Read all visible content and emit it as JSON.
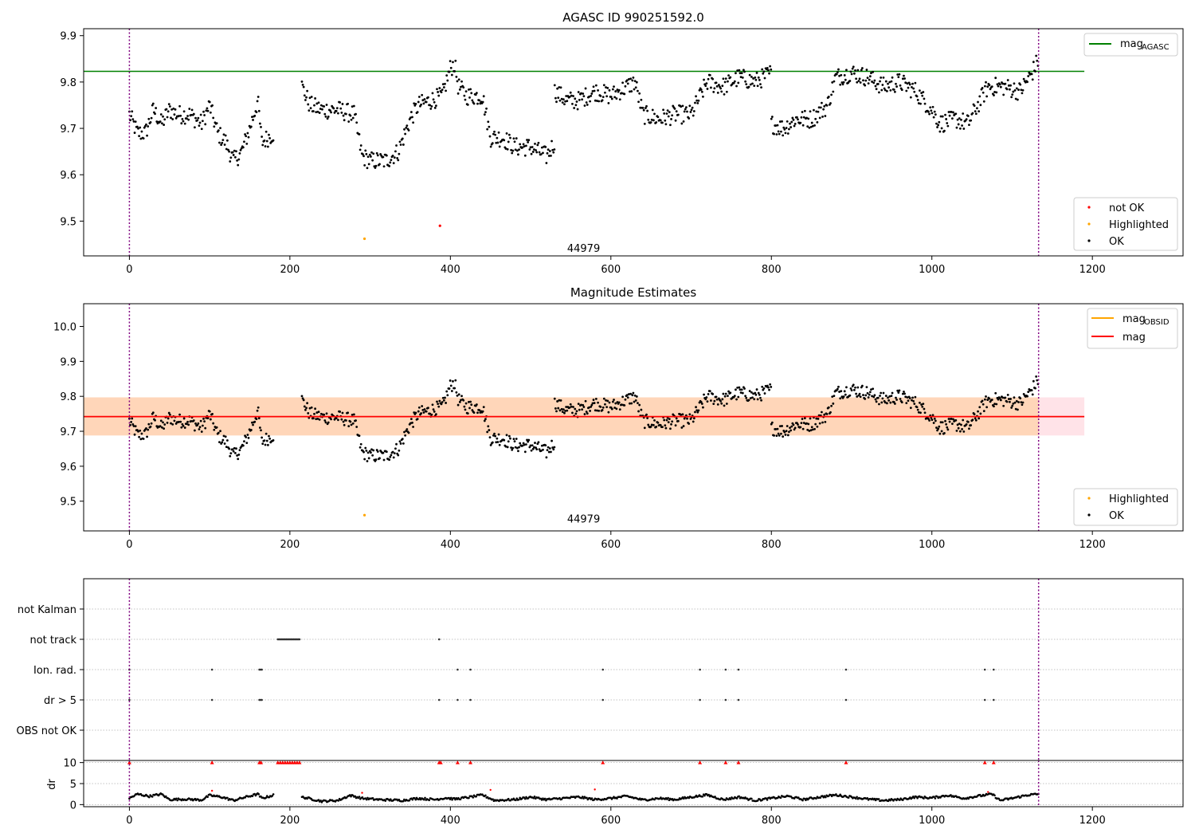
{
  "chart_data": [
    {
      "type": "scatter",
      "title": "AGASC ID 990251592.0",
      "xlim": [
        -57,
        1313
      ],
      "ylim": [
        9.425,
        9.915
      ],
      "xticks": [
        0,
        200,
        400,
        600,
        800,
        1000,
        1200
      ],
      "yticks": [
        9.5,
        9.6,
        9.7,
        9.8,
        9.9
      ],
      "hline": {
        "name": "mag_AGASC",
        "value": 9.823,
        "xrange": [
          -57,
          1190
        ],
        "color": "#008000"
      },
      "vlines": [
        0,
        1133
      ],
      "obsid_label": {
        "text": "44979",
        "x": 566,
        "y": 9.442
      },
      "legend_top": [
        {
          "label": "mag",
          "sub": "AGASC",
          "color": "#008000"
        }
      ],
      "legend_bottom": [
        {
          "label": "not OK",
          "color": "#ff0000"
        },
        {
          "label": "Highlighted",
          "color": "#ffa500"
        },
        {
          "label": "OK",
          "color": "#000000"
        }
      ],
      "series": [
        {
          "name": "OK",
          "color": "#000000",
          "segments": [
            [
              [
                0,
                9.73
              ],
              [
                10,
                9.69
              ],
              [
                20,
                9.69
              ],
              [
                30,
                9.74
              ],
              [
                40,
                9.71
              ],
              [
                50,
                9.74
              ],
              [
                60,
                9.73
              ],
              [
                75,
                9.73
              ],
              [
                90,
                9.71
              ],
              [
                100,
                9.75
              ],
              [
                110,
                9.69
              ],
              [
                120,
                9.67
              ],
              [
                130,
                9.63
              ],
              [
                140,
                9.65
              ],
              [
                150,
                9.7
              ],
              [
                160,
                9.76
              ],
              [
                165,
                9.67
              ],
              [
                180,
                9.69
              ]
            ],
            [
              [
                215,
                9.79
              ],
              [
                225,
                9.75
              ],
              [
                240,
                9.74
              ],
              [
                260,
                9.74
              ],
              [
                280,
                9.73
              ],
              [
                290,
                9.64
              ],
              [
                300,
                9.63
              ],
              [
                320,
                9.63
              ],
              [
                335,
                9.65
              ],
              [
                350,
                9.72
              ],
              [
                360,
                9.75
              ],
              [
                375,
                9.76
              ],
              [
                390,
                9.77
              ],
              [
                400,
                9.83
              ],
              [
                405,
                9.84
              ],
              [
                410,
                9.79
              ],
              [
                420,
                9.77
              ],
              [
                440,
                9.77
              ],
              [
                450,
                9.68
              ],
              [
                465,
                9.68
              ],
              [
                480,
                9.66
              ],
              [
                500,
                9.66
              ],
              [
                520,
                9.64
              ],
              [
                530,
                9.67
              ]
            ],
            [
              [
                530,
                9.78
              ],
              [
                545,
                9.76
              ],
              [
                560,
                9.76
              ],
              [
                580,
                9.78
              ],
              [
                600,
                9.77
              ],
              [
                620,
                9.79
              ],
              [
                630,
                9.8
              ],
              [
                640,
                9.73
              ],
              [
                660,
                9.72
              ],
              [
                680,
                9.73
              ],
              [
                700,
                9.73
              ],
              [
                720,
                9.8
              ],
              [
                740,
                9.79
              ],
              [
                760,
                9.81
              ],
              [
                780,
                9.8
              ],
              [
                790,
                9.81
              ],
              [
                800,
                9.82
              ]
            ],
            [
              [
                800,
                9.71
              ],
              [
                815,
                9.7
              ],
              [
                830,
                9.72
              ],
              [
                850,
                9.72
              ],
              [
                870,
                9.75
              ],
              [
                880,
                9.81
              ],
              [
                900,
                9.82
              ],
              [
                920,
                9.81
              ],
              [
                940,
                9.79
              ],
              [
                960,
                9.8
              ],
              [
                980,
                9.78
              ],
              [
                990,
                9.76
              ],
              [
                1000,
                9.74
              ],
              [
                1010,
                9.71
              ],
              [
                1030,
                9.72
              ],
              [
                1045,
                9.71
              ],
              [
                1060,
                9.76
              ],
              [
                1070,
                9.79
              ],
              [
                1090,
                9.79
              ],
              [
                1110,
                9.78
              ],
              [
                1125,
                9.82
              ],
              [
                1133,
                9.85
              ]
            ]
          ]
        },
        {
          "name": "Highlighted",
          "color": "#ffa500",
          "points": [
            [
              293,
              9.462
            ]
          ]
        },
        {
          "name": "not OK",
          "color": "#ff0000",
          "points": [
            [
              387,
              9.49
            ]
          ]
        }
      ]
    },
    {
      "type": "scatter",
      "title": "Magnitude Estimates",
      "xlim": [
        -57,
        1313
      ],
      "ylim": [
        9.415,
        10.065
      ],
      "xticks": [
        0,
        200,
        400,
        600,
        800,
        1000,
        1200
      ],
      "yticks": [
        9.5,
        9.6,
        9.7,
        9.8,
        9.9,
        10.0
      ],
      "mag_band": {
        "low": 9.688,
        "high": 9.797,
        "xrange": [
          -57,
          1190
        ],
        "color": "#ffc0cb"
      },
      "obsid_band": {
        "low": 9.688,
        "high": 9.797,
        "xrange": [
          -57,
          1133
        ],
        "color": "#ffa500"
      },
      "hline": {
        "name": "mag",
        "value": 9.742,
        "xrange": [
          -57,
          1190
        ],
        "color": "#ff0000"
      },
      "vlines": [
        0,
        1133
      ],
      "obsid_label": {
        "text": "44979",
        "x": 566,
        "y": 9.45
      },
      "legend_top": [
        {
          "label": "mag",
          "sub": "OBSID",
          "color": "#ffa500"
        },
        {
          "label": "mag",
          "sub": "",
          "color": "#ff0000"
        }
      ],
      "legend_bottom": [
        {
          "label": "Highlighted",
          "color": "#ffa500"
        },
        {
          "label": "OK",
          "color": "#000000"
        }
      ],
      "series": [
        {
          "name": "OK",
          "color": "#000000",
          "same_as_panel": 0
        },
        {
          "name": "Highlighted",
          "color": "#ffa500",
          "points": [
            [
              293,
              9.46
            ]
          ]
        }
      ]
    },
    {
      "type": "scatter",
      "title": "",
      "xlim": [
        -57,
        1313
      ],
      "flag_rows": [
        "not Kalman",
        "not track",
        "Ion. rad.",
        "dr > 5",
        "OBS not OK"
      ],
      "flags": {
        "not track": [
          [
            185,
            212
          ],
          [
            386,
            386
          ]
        ],
        "Ion. rad.": [
          [
            0,
            0
          ],
          [
            103,
            103
          ],
          [
            162,
            165
          ],
          [
            409,
            409
          ],
          [
            425,
            425
          ],
          [
            590,
            590
          ],
          [
            711,
            711
          ],
          [
            743,
            743
          ],
          [
            759,
            759
          ],
          [
            893,
            893
          ],
          [
            1066,
            1066
          ],
          [
            1077,
            1077
          ]
        ],
        "dr > 5": [
          [
            0,
            0
          ],
          [
            103,
            103
          ],
          [
            162,
            165
          ],
          [
            386,
            386
          ],
          [
            409,
            409
          ],
          [
            425,
            425
          ],
          [
            590,
            590
          ],
          [
            711,
            711
          ],
          [
            743,
            743
          ],
          [
            759,
            759
          ],
          [
            893,
            893
          ],
          [
            1066,
            1066
          ],
          [
            1077,
            1077
          ]
        ]
      },
      "dr": {
        "ylabel": "dr",
        "ylim": [
          -0.5,
          10.5
        ],
        "yticks": [
          0,
          5,
          10
        ],
        "clip": 10,
        "ok_segments": [
          [
            [
              0,
              1.5
            ],
            [
              10,
              2.5
            ],
            [
              25,
              2
            ],
            [
              40,
              2.5
            ],
            [
              50,
              1.2
            ],
            [
              70,
              1.3
            ],
            [
              90,
              1.1
            ],
            [
              100,
              2.2
            ],
            [
              115,
              1.8
            ],
            [
              130,
              1.0
            ],
            [
              145,
              1.8
            ],
            [
              160,
              2.5
            ],
            [
              165,
              1.5
            ],
            [
              175,
              2
            ],
            [
              180,
              2.3
            ]
          ],
          [
            [
              215,
              1.8
            ],
            [
              240,
              0.8
            ],
            [
              260,
              1.0
            ],
            [
              275,
              2.2
            ],
            [
              290,
              1.5
            ],
            [
              310,
              1.2
            ],
            [
              340,
              1.0
            ],
            [
              360,
              1.5
            ],
            [
              380,
              1.2
            ],
            [
              395,
              1.6
            ],
            [
              405,
              1.3
            ],
            [
              425,
              1.8
            ],
            [
              440,
              2.3
            ],
            [
              455,
              1.0
            ],
            [
              480,
              1.2
            ],
            [
              500,
              1.8
            ],
            [
              520,
              1.2
            ],
            [
              540,
              1.5
            ],
            [
              560,
              1.8
            ],
            [
              580,
              1.2
            ],
            [
              600,
              1.5
            ],
            [
              620,
              2.0
            ],
            [
              640,
              1.1
            ],
            [
              660,
              1.5
            ],
            [
              680,
              1.2
            ],
            [
              700,
              1.8
            ],
            [
              720,
              2.3
            ],
            [
              740,
              1.2
            ],
            [
              760,
              1.8
            ],
            [
              780,
              1.0
            ],
            [
              800,
              1.5
            ],
            [
              820,
              2.0
            ],
            [
              840,
              1.2
            ],
            [
              860,
              1.8
            ],
            [
              880,
              2.3
            ],
            [
              900,
              1.8
            ],
            [
              920,
              1.3
            ],
            [
              940,
              1.0
            ],
            [
              960,
              1.2
            ],
            [
              980,
              1.8
            ],
            [
              1000,
              1.6
            ],
            [
              1020,
              2.2
            ],
            [
              1040,
              1.5
            ],
            [
              1060,
              2.1
            ],
            [
              1075,
              2.5
            ],
            [
              1085,
              1.0
            ],
            [
              1100,
              1.5
            ],
            [
              1120,
              2.3
            ],
            [
              1133,
              2.5
            ]
          ]
        ],
        "not_ok_points": [
          [
            103,
            3.3
          ],
          [
            290,
            2.8
          ],
          [
            450,
            3.5
          ],
          [
            580,
            3.6
          ],
          [
            1070,
            3.0
          ]
        ],
        "clipped_points": [
          0,
          103,
          162,
          164,
          185,
          188,
          191,
          194,
          197,
          200,
          203,
          206,
          209,
          212,
          386,
          388,
          409,
          425,
          590,
          711,
          743,
          759,
          893,
          1066,
          1077
        ]
      },
      "xticks": [
        0,
        200,
        400,
        600,
        800,
        1000,
        1200
      ],
      "vlines": [
        0,
        1133
      ]
    }
  ]
}
